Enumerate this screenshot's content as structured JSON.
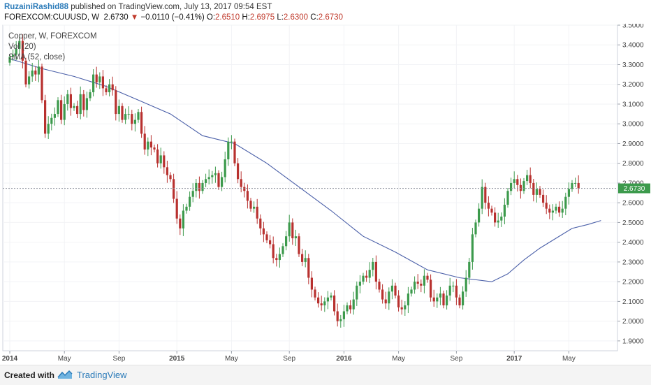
{
  "header": {
    "author": "RuzainiRashid88",
    "published_text": "published on TradingView.com, July 13, 2017 09:54 EST",
    "symbol": "FOREXCOM:CUUUSD, W",
    "last": "2.6730",
    "change_arrow": "▼",
    "change": "−0.0110 (−0.41%)",
    "open_label": "O:",
    "open": "2.6510",
    "high_label": "H:",
    "high": "2.6975",
    "low_label": "L:",
    "low": "2.6300",
    "close_label": "C:",
    "close": "2.6730"
  },
  "legend": [
    "Copper, W, FOREXCOM",
    "Vol (20)",
    "SMA (52, close)"
  ],
  "footer": {
    "created_with": "Created with",
    "brand": "TradingView"
  },
  "colors": {
    "up": "#3c9a4c",
    "down": "#b8312f",
    "sma": "#4a5fa8",
    "price_label": "#3c9a4c"
  },
  "chart_data": {
    "type": "candlestick",
    "title": "Copper, W, FOREXCOM",
    "ylim": [
      1.85,
      3.5
    ],
    "yticks": [
      "1.9000",
      "2.0000",
      "2.1000",
      "2.2000",
      "2.3000",
      "2.4000",
      "2.5000",
      "2.6000",
      "2.7000",
      "2.8000",
      "2.9000",
      "3.0000",
      "3.1000",
      "3.2000",
      "3.3000",
      "3.4000",
      "3.5000"
    ],
    "xticks": [
      {
        "label": "2014",
        "week": 0,
        "bold": true
      },
      {
        "label": "May",
        "week": 17
      },
      {
        "label": "Sep",
        "week": 34
      },
      {
        "label": "2015",
        "week": 52,
        "bold": true
      },
      {
        "label": "May",
        "week": 69
      },
      {
        "label": "Sep",
        "week": 87
      },
      {
        "label": "2016",
        "week": 104,
        "bold": true
      },
      {
        "label": "May",
        "week": 121
      },
      {
        "label": "Sep",
        "week": 139
      },
      {
        "label": "2017",
        "week": 157,
        "bold": true
      },
      {
        "label": "May",
        "week": 174
      }
    ],
    "last_price": 2.673,
    "last_price_label": "2.6730",
    "closes": [
      3.34,
      3.35,
      3.38,
      3.42,
      3.32,
      3.2,
      3.24,
      3.27,
      3.25,
      3.29,
      3.12,
      2.95,
      3,
      3.03,
      3.05,
      3.12,
      3.02,
      3.1,
      3.15,
      3.08,
      3.09,
      3.05,
      3.15,
      3.07,
      3.13,
      3.16,
      3.25,
      3.21,
      3.24,
      3.18,
      3.16,
      3.2,
      3.17,
      3.05,
      3.09,
      3.02,
      3.05,
      3.05,
      3,
      3.02,
      3.06,
      2.95,
      2.87,
      2.91,
      2.88,
      2.87,
      2.8,
      2.84,
      2.78,
      2.74,
      2.72,
      2.62,
      2.52,
      2.47,
      2.56,
      2.58,
      2.63,
      2.66,
      2.7,
      2.66,
      2.7,
      2.72,
      2.73,
      2.74,
      2.75,
      2.68,
      2.73,
      2.82,
      2.91,
      2.91,
      2.8,
      2.72,
      2.68,
      2.66,
      2.61,
      2.57,
      2.58,
      2.52,
      2.47,
      2.44,
      2.41,
      2.39,
      2.32,
      2.31,
      2.34,
      2.38,
      2.43,
      2.5,
      2.42,
      2.43,
      2.34,
      2.3,
      2.32,
      2.22,
      2.16,
      2.12,
      2.09,
      2.08,
      2.1,
      2.12,
      2.13,
      2.05,
      2,
      2.01,
      2.05,
      2.08,
      2.06,
      2.11,
      2.18,
      2.2,
      2.23,
      2.22,
      2.26,
      2.3,
      2.2,
      2.16,
      2.11,
      2.09,
      2.15,
      2.18,
      2.13,
      2.07,
      2.06,
      2.08,
      2.14,
      2.16,
      2.2,
      2.19,
      2.18,
      2.23,
      2.21,
      2.12,
      2.1,
      2.12,
      2.14,
      2.08,
      2.13,
      2.18,
      2.18,
      2.12,
      2.08,
      2.15,
      2.22,
      2.3,
      2.44,
      2.5,
      2.57,
      2.68,
      2.6,
      2.57,
      2.55,
      2.5,
      2.51,
      2.53,
      2.59,
      2.66,
      2.7,
      2.72,
      2.69,
      2.66,
      2.71,
      2.74,
      2.7,
      2.64,
      2.67,
      2.64,
      2.6,
      2.57,
      2.55,
      2.56,
      2.58,
      2.55,
      2.57,
      2.63,
      2.67,
      2.7,
      2.7,
      2.673
    ],
    "sma": [
      {
        "week": 0,
        "value": 3.33
      },
      {
        "week": 10,
        "value": 3.28
      },
      {
        "week": 20,
        "value": 3.24
      },
      {
        "week": 30,
        "value": 3.19
      },
      {
        "week": 40,
        "value": 3.12
      },
      {
        "week": 50,
        "value": 3.05
      },
      {
        "week": 60,
        "value": 2.94
      },
      {
        "week": 70,
        "value": 2.9
      },
      {
        "week": 80,
        "value": 2.8
      },
      {
        "week": 90,
        "value": 2.68
      },
      {
        "week": 100,
        "value": 2.56
      },
      {
        "week": 110,
        "value": 2.43
      },
      {
        "week": 120,
        "value": 2.35
      },
      {
        "week": 130,
        "value": 2.26
      },
      {
        "week": 140,
        "value": 2.22
      },
      {
        "week": 150,
        "value": 2.2
      },
      {
        "week": 155,
        "value": 2.24
      },
      {
        "week": 160,
        "value": 2.31
      },
      {
        "week": 165,
        "value": 2.37
      },
      {
        "week": 170,
        "value": 2.42
      },
      {
        "week": 175,
        "value": 2.47
      },
      {
        "week": 180,
        "value": 2.49
      },
      {
        "week": 184,
        "value": 2.51
      }
    ]
  }
}
